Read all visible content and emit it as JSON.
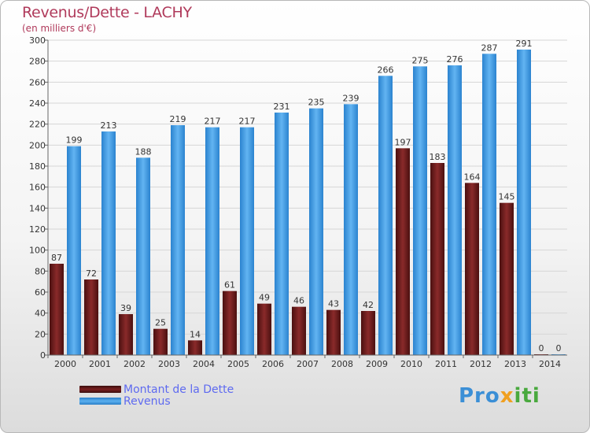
{
  "header": {
    "title": "Revenus/Dette - LACHY",
    "subtitle": "(en milliers d'€)"
  },
  "legend": {
    "debt_label": "Montant de la Dette",
    "revenue_label": "Revenus"
  },
  "logo": {
    "text_a": "Pro",
    "text_b": "x",
    "text_c": "iti"
  },
  "colors": {
    "debt": "#7a1f1f",
    "revenue": "#3a97e0",
    "axis_text": "#333333"
  },
  "chart_data": {
    "type": "bar",
    "title": "Revenus/Dette - LACHY",
    "subtitle": "(en milliers d'€)",
    "categories": [
      "2000",
      "2001",
      "2002",
      "2003",
      "2004",
      "2005",
      "2006",
      "2007",
      "2008",
      "2009",
      "2010",
      "2011",
      "2012",
      "2013",
      "2014"
    ],
    "series": [
      {
        "name": "Montant de la Dette",
        "values": [
          87,
          72,
          39,
          25,
          14,
          61,
          49,
          46,
          43,
          42,
          197,
          183,
          164,
          145,
          0
        ]
      },
      {
        "name": "Revenus",
        "values": [
          199,
          213,
          188,
          219,
          217,
          217,
          231,
          235,
          239,
          266,
          275,
          276,
          287,
          291,
          0
        ]
      }
    ],
    "ylim": [
      0,
      300
    ],
    "yticks": [
      0,
      20,
      40,
      60,
      80,
      100,
      120,
      140,
      160,
      180,
      200,
      220,
      240,
      260,
      280,
      300
    ],
    "grid": true,
    "legend_position": "bottom-left"
  }
}
